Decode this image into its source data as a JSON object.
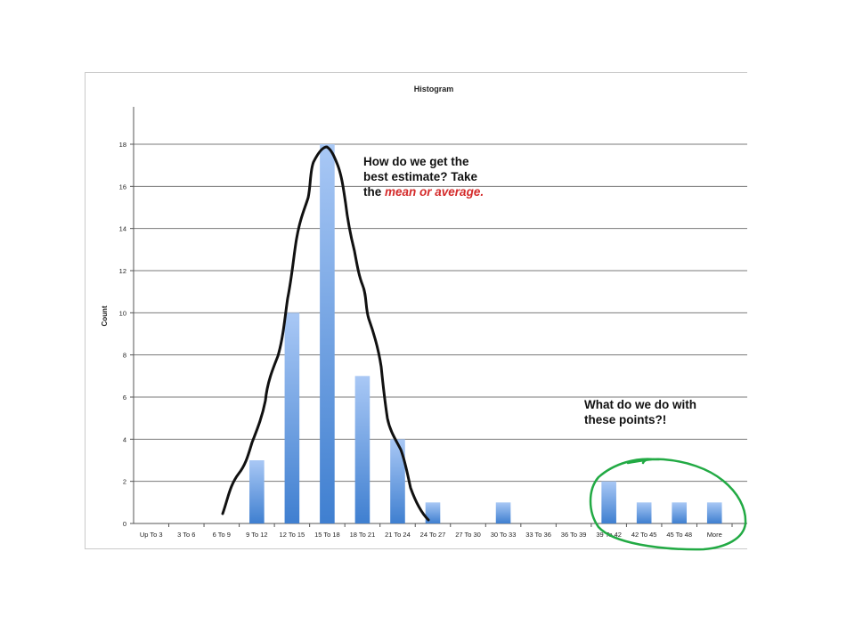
{
  "chart_data": {
    "type": "bar",
    "title": "Histogram",
    "xlabel": "",
    "ylabel": "Count",
    "ylim": [
      0,
      18
    ],
    "yticks": [
      0,
      2,
      4,
      6,
      8,
      10,
      12,
      14,
      16,
      18
    ],
    "grid": true,
    "categories": [
      "Up To 3",
      "3 To 6",
      "6 To 9",
      "9 To 12",
      "12 To 15",
      "15 To 18",
      "18 To 21",
      "21 To 24",
      "24 To 27",
      "27 To 30",
      "30 To 33",
      "33 To 36",
      "36 To 39",
      "39 To 42",
      "42 To 45",
      "45 To 48",
      "More"
    ],
    "values": [
      0,
      0,
      0,
      3,
      10,
      18,
      7,
      4,
      1,
      0,
      1,
      0,
      0,
      2,
      1,
      1,
      1
    ],
    "bar_color_top": "#a9c8f5",
    "bar_color_bottom": "#3f7fd0",
    "annotations": {
      "q1_line1": "How do we get the",
      "q1_line2": "best estimate?  Take",
      "q1_line3_prefix": "the ",
      "q1_emphasis": "mean or average.",
      "q2_line1": "What do we do with",
      "q2_line2": "these points?!"
    },
    "curve_color": "#111111",
    "circle_color": "#22aa44"
  }
}
